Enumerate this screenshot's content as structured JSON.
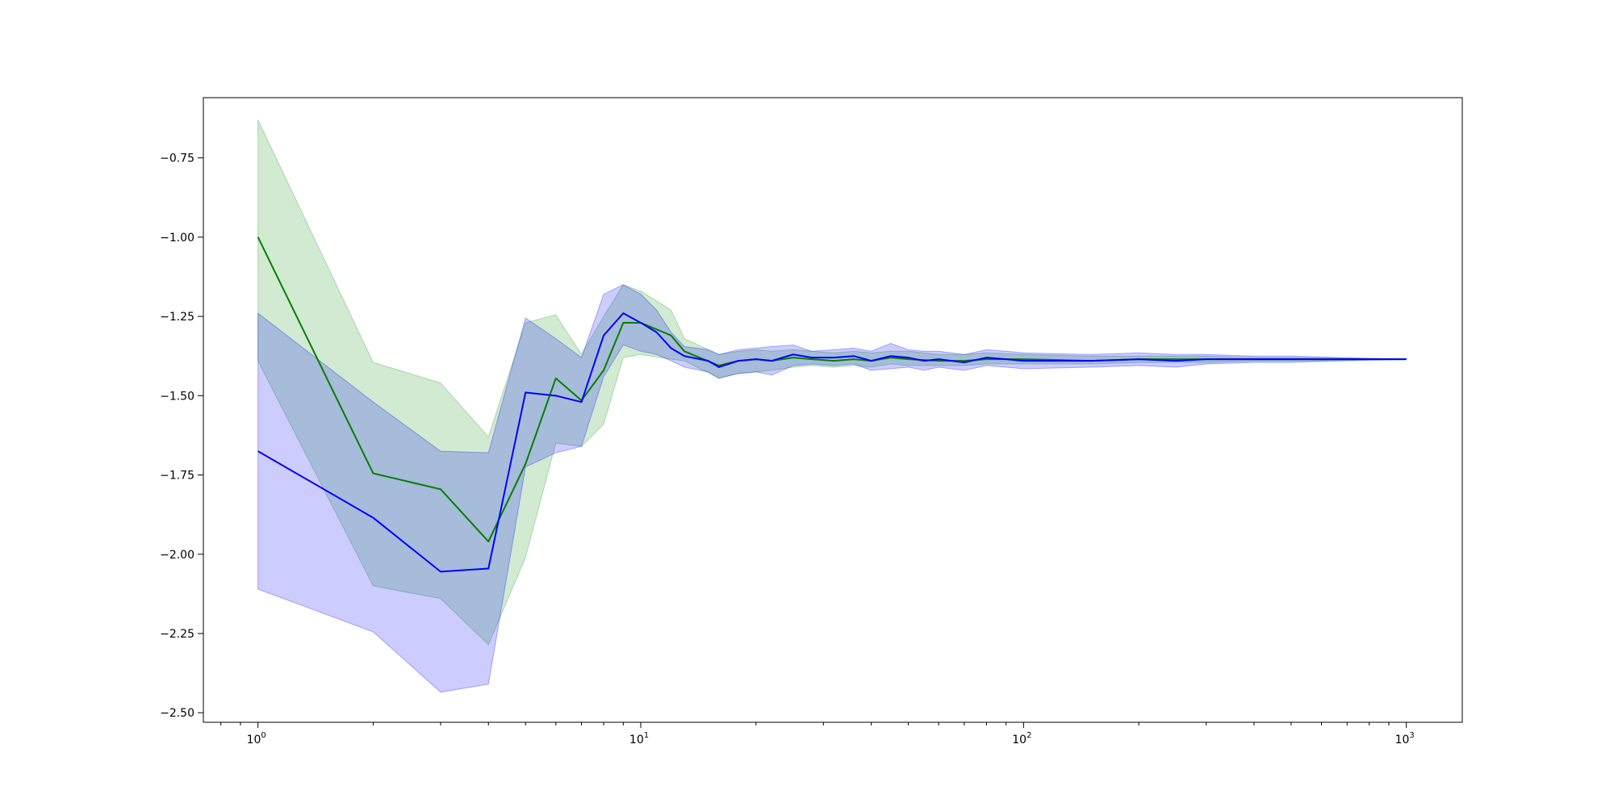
{
  "chart_data": {
    "type": "line",
    "title": "",
    "xlabel": "",
    "ylabel": "",
    "xscale": "log",
    "xlim": [
      0.72,
      1400
    ],
    "ylim": [
      -2.53,
      -0.56
    ],
    "grid": false,
    "legend": "none",
    "x_ticks": [
      {
        "value": 1,
        "base": "10",
        "exp": "0"
      },
      {
        "value": 10,
        "base": "10",
        "exp": "1"
      },
      {
        "value": 100,
        "base": "10",
        "exp": "2"
      },
      {
        "value": 1000,
        "base": "10",
        "exp": "3"
      }
    ],
    "y_ticks": [
      {
        "value": -0.75,
        "label": "−0.75"
      },
      {
        "value": -1.0,
        "label": "−1.00"
      },
      {
        "value": -1.25,
        "label": "−1.25"
      },
      {
        "value": -1.5,
        "label": "−1.50"
      },
      {
        "value": -1.75,
        "label": "−1.75"
      },
      {
        "value": -2.0,
        "label": "−2.00"
      },
      {
        "value": -2.25,
        "label": "−2.25"
      },
      {
        "value": -2.5,
        "label": "−2.50"
      }
    ],
    "series": [
      {
        "color": "#008000",
        "band_color": "#2ca02c",
        "band_opacity": 0.22,
        "x": [
          1,
          2,
          3,
          4,
          5,
          6,
          7,
          8,
          9,
          10,
          12,
          13,
          16,
          18,
          20,
          22,
          25,
          28,
          32,
          36,
          40,
          45,
          50,
          60,
          70,
          80,
          100,
          150,
          200,
          300,
          400,
          500,
          600,
          800,
          1000
        ],
        "y": [
          -1.0,
          -1.745,
          -1.795,
          -1.96,
          -1.715,
          -1.445,
          -1.515,
          -1.42,
          -1.27,
          -1.27,
          -1.31,
          -1.36,
          -1.405,
          -1.39,
          -1.385,
          -1.39,
          -1.38,
          -1.385,
          -1.39,
          -1.385,
          -1.39,
          -1.38,
          -1.385,
          -1.39,
          -1.39,
          -1.385,
          -1.385,
          -1.39,
          -1.385,
          -1.385,
          -1.385,
          -1.385,
          -1.385,
          -1.385,
          -1.385
        ],
        "upper": [
          -0.63,
          -1.395,
          -1.46,
          -1.63,
          -1.27,
          -1.245,
          -1.37,
          -1.25,
          -1.15,
          -1.17,
          -1.23,
          -1.32,
          -1.37,
          -1.36,
          -1.355,
          -1.36,
          -1.355,
          -1.36,
          -1.365,
          -1.36,
          -1.365,
          -1.36,
          -1.36,
          -1.37,
          -1.37,
          -1.365,
          -1.37,
          -1.375,
          -1.375,
          -1.375,
          -1.38,
          -1.38,
          -1.38,
          -1.383,
          -1.384
        ],
        "lower": [
          -1.39,
          -2.1,
          -2.14,
          -2.285,
          -2.01,
          -1.65,
          -1.66,
          -1.59,
          -1.38,
          -1.37,
          -1.385,
          -1.39,
          -1.445,
          -1.43,
          -1.425,
          -1.42,
          -1.41,
          -1.405,
          -1.41,
          -1.405,
          -1.41,
          -1.4,
          -1.405,
          -1.405,
          -1.405,
          -1.4,
          -1.4,
          -1.4,
          -1.395,
          -1.395,
          -1.39,
          -1.39,
          -1.39,
          -1.387,
          -1.386
        ]
      },
      {
        "color": "#0000ff",
        "band_color": "#0000ff",
        "band_opacity": 0.2,
        "x": [
          1,
          2,
          3,
          4,
          5,
          6,
          7,
          8,
          9,
          10,
          11,
          12,
          13,
          15,
          16,
          18,
          20,
          22,
          25,
          28,
          32,
          36,
          40,
          45,
          50,
          55,
          60,
          70,
          80,
          90,
          100,
          150,
          200,
          250,
          300,
          400,
          500,
          600,
          800,
          1000
        ],
        "y": [
          -1.675,
          -1.885,
          -2.055,
          -2.045,
          -1.49,
          -1.5,
          -1.52,
          -1.31,
          -1.24,
          -1.27,
          -1.3,
          -1.35,
          -1.375,
          -1.39,
          -1.41,
          -1.39,
          -1.385,
          -1.39,
          -1.37,
          -1.38,
          -1.38,
          -1.375,
          -1.39,
          -1.375,
          -1.38,
          -1.39,
          -1.385,
          -1.395,
          -1.38,
          -1.385,
          -1.39,
          -1.39,
          -1.385,
          -1.39,
          -1.385,
          -1.385,
          -1.385,
          -1.385,
          -1.385,
          -1.385
        ],
        "upper": [
          -1.24,
          -1.52,
          -1.675,
          -1.68,
          -1.255,
          -1.32,
          -1.38,
          -1.18,
          -1.15,
          -1.18,
          -1.23,
          -1.3,
          -1.345,
          -1.355,
          -1.37,
          -1.355,
          -1.35,
          -1.345,
          -1.34,
          -1.36,
          -1.355,
          -1.35,
          -1.36,
          -1.335,
          -1.355,
          -1.36,
          -1.36,
          -1.37,
          -1.355,
          -1.36,
          -1.365,
          -1.37,
          -1.365,
          -1.37,
          -1.37,
          -1.375,
          -1.375,
          -1.378,
          -1.382,
          -1.384
        ],
        "lower": [
          -2.11,
          -2.245,
          -2.435,
          -2.41,
          -1.725,
          -1.68,
          -1.66,
          -1.44,
          -1.34,
          -1.36,
          -1.37,
          -1.39,
          -1.41,
          -1.425,
          -1.445,
          -1.43,
          -1.425,
          -1.435,
          -1.405,
          -1.4,
          -1.405,
          -1.4,
          -1.42,
          -1.415,
          -1.41,
          -1.42,
          -1.41,
          -1.42,
          -1.405,
          -1.41,
          -1.415,
          -1.41,
          -1.405,
          -1.41,
          -1.4,
          -1.395,
          -1.395,
          -1.392,
          -1.388,
          -1.386
        ]
      }
    ]
  }
}
